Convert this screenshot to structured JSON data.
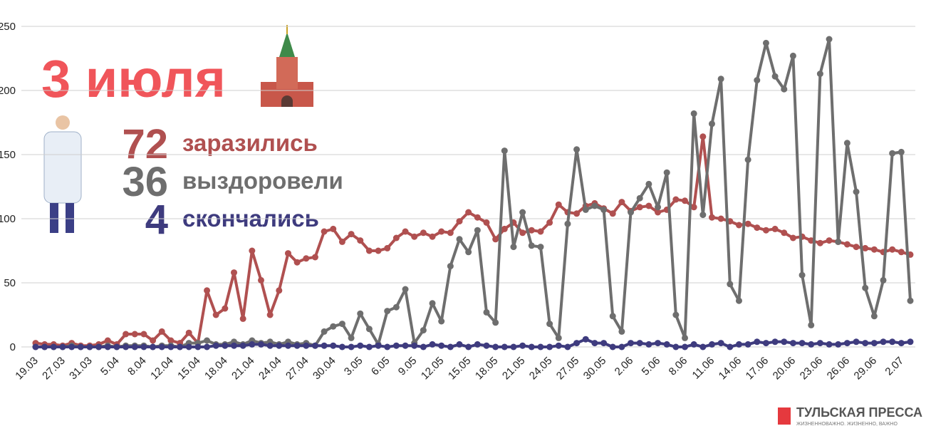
{
  "chart_data": {
    "type": "line",
    "title": "3 июля",
    "summary": [
      {
        "value": 72,
        "label": "заразились",
        "color": "#b05050"
      },
      {
        "value": 36,
        "label": "выздоровели",
        "color": "#6e6e6e"
      },
      {
        "value": 4,
        "label": "скончались",
        "color": "#3e3b7e"
      }
    ],
    "categories": [
      "19.03",
      null,
      null,
      "27.03",
      null,
      null,
      "31.03",
      null,
      null,
      "5.04",
      null,
      null,
      "8.04",
      null,
      null,
      "12.04",
      null,
      null,
      "15.04",
      null,
      null,
      "18.04",
      null,
      null,
      "21.04",
      null,
      null,
      "24.04",
      null,
      null,
      "27.04",
      null,
      null,
      "30.04",
      null,
      null,
      "3.05",
      null,
      null,
      "6.05",
      null,
      null,
      "9.05",
      null,
      null,
      "12.05",
      null,
      null,
      "15.05",
      null,
      null,
      "18.05",
      null,
      null,
      "21.05",
      null,
      null,
      "24.05",
      null,
      null,
      "27.05",
      null,
      null,
      "30.05",
      null,
      null,
      "2.06",
      null,
      null,
      "5.06",
      null,
      null,
      "8.06",
      null,
      null,
      "11.06",
      null,
      null,
      "14.06",
      null,
      null,
      "17.06",
      null,
      null,
      "20.06",
      null,
      null,
      "23.06",
      null,
      null,
      "26.06",
      null,
      null,
      "29.06",
      null,
      null,
      "2.07",
      null
    ],
    "series": [
      {
        "name": "заразились",
        "color": "#b05050",
        "values": [
          3,
          2,
          2,
          1,
          3,
          1,
          1,
          2,
          5,
          2,
          10,
          10,
          10,
          5,
          12,
          5,
          3,
          11,
          3,
          44,
          25,
          30,
          58,
          22,
          75,
          52,
          25,
          44,
          73,
          66,
          69,
          70,
          90,
          92,
          82,
          88,
          83,
          75,
          75,
          77,
          85,
          90,
          86,
          89,
          86,
          90,
          89,
          98,
          105,
          101,
          97,
          84,
          92,
          97,
          89,
          91,
          90,
          97,
          111,
          105,
          104,
          110,
          112,
          108,
          104,
          113,
          106,
          109,
          110,
          105,
          107,
          115,
          114,
          109,
          164,
          101,
          100,
          98,
          95,
          96,
          93,
          91,
          92,
          89,
          85,
          86,
          83,
          81,
          83,
          82,
          80,
          78,
          77,
          76,
          74,
          76,
          74,
          72
        ]
      },
      {
        "name": "выздоровели",
        "color": "#6e6e6e",
        "values": [
          0,
          0,
          0,
          0,
          1,
          0,
          0,
          0,
          1,
          0,
          1,
          1,
          1,
          0,
          1,
          1,
          0,
          3,
          3,
          5,
          2,
          2,
          4,
          2,
          5,
          3,
          4,
          2,
          4,
          2,
          3,
          1,
          12,
          16,
          18,
          7,
          26,
          14,
          2,
          28,
          31,
          45,
          3,
          13,
          34,
          20,
          63,
          84,
          74,
          91,
          27,
          19,
          153,
          78,
          105,
          79,
          78,
          18,
          7,
          96,
          154,
          107,
          110,
          107,
          24,
          12,
          105,
          116,
          127,
          109,
          136,
          25,
          7,
          182,
          103,
          174,
          209,
          49,
          36,
          146,
          208,
          237,
          211,
          201,
          227,
          56,
          17,
          213,
          240,
          82,
          159,
          121,
          46,
          24,
          52,
          151,
          152,
          36
        ]
      },
      {
        "name": "скончались",
        "color": "#3e3b7e",
        "values": [
          0,
          0,
          0,
          0,
          0,
          0,
          0,
          0,
          0,
          0,
          0,
          0,
          0,
          0,
          0,
          0,
          0,
          0,
          0,
          0,
          1,
          1,
          1,
          1,
          2,
          2,
          1,
          1,
          1,
          1,
          1,
          1,
          1,
          1,
          0,
          0,
          1,
          0,
          1,
          0,
          1,
          1,
          1,
          0,
          2,
          1,
          0,
          2,
          0,
          2,
          1,
          0,
          0,
          0,
          1,
          0,
          0,
          0,
          1,
          0,
          3,
          6,
          3,
          3,
          0,
          0,
          3,
          3,
          2,
          3,
          2,
          0,
          0,
          2,
          0,
          2,
          3,
          0,
          2,
          2,
          4,
          3,
          4,
          4,
          3,
          3,
          2,
          3,
          2,
          2,
          3,
          4,
          3,
          3,
          4,
          4,
          3,
          4
        ]
      }
    ],
    "ylim": [
      0,
      250
    ],
    "yticks": [
      0,
      50,
      100,
      150,
      200,
      250
    ],
    "grid": true,
    "brand": {
      "name": "ТУЛЬСКАЯ ПРЕССА",
      "tagline": "ЖИЗНЕННОВАЖНО. ЖИЗНЕННО, ВАЖНО"
    }
  }
}
